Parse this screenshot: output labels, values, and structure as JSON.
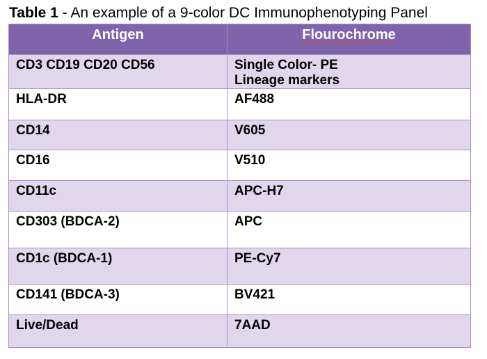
{
  "caption": {
    "label": "Table 1",
    "text": " - An example of a 9-color DC Immunophenotyping Panel"
  },
  "table": {
    "headers": [
      "Antigen",
      "Flourochrome"
    ],
    "rows": [
      {
        "antigen": "CD3 CD19 CD20 CD56",
        "fluorochrome": "Single Color-  PE\nLineage markers"
      },
      {
        "antigen": "HLA-DR",
        "fluorochrome": "AF488"
      },
      {
        "antigen": "CD14",
        "fluorochrome": "V605"
      },
      {
        "antigen": "CD16",
        "fluorochrome": "V510"
      },
      {
        "antigen": "CD11c",
        "fluorochrome": "APC-H7"
      },
      {
        "antigen": "CD303   (BDCA-2)",
        "fluorochrome": "APC"
      },
      {
        "antigen": "CD1c     (BDCA-1)",
        "fluorochrome": "PE-Cy7"
      },
      {
        "antigen": "CD141   (BDCA-3)",
        "fluorochrome": "BV421"
      },
      {
        "antigen": "Live/Dead",
        "fluorochrome": "7AAD"
      }
    ]
  },
  "colors": {
    "header_bg": "#7f63ab",
    "shaded_row_bg": "#e0d7ec",
    "plain_row_bg": "#ffffff",
    "border": "#a78fc9"
  }
}
